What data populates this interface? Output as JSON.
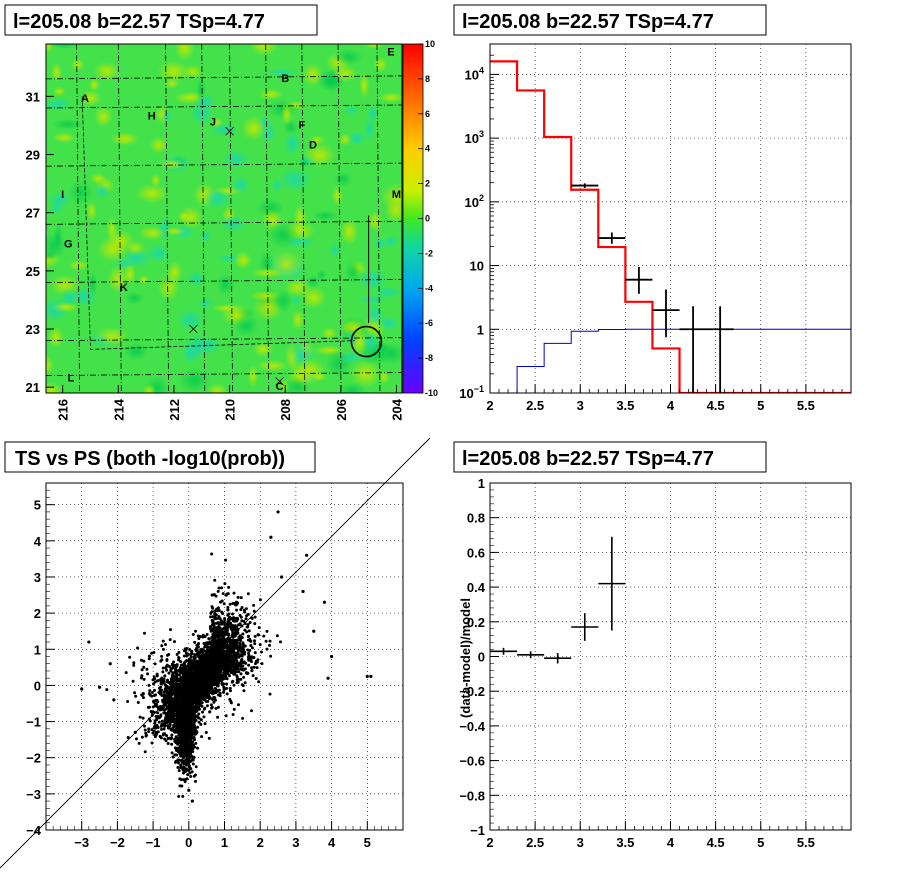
{
  "chart_data": [
    {
      "type": "heatmap",
      "title": "l=205.08 b=22.57 TSp=4.77",
      "x_ticks": [
        "216",
        "214",
        "212",
        "210",
        "208",
        "206",
        "204"
      ],
      "y_ticks": [
        "31",
        "29",
        "27",
        "25",
        "23",
        "21"
      ],
      "colorbar_ticks": [
        "10",
        "8",
        "6",
        "4",
        "2",
        "0",
        "-2",
        "-4",
        "-6",
        "-8",
        "-10"
      ],
      "colorbar_range": [
        -10,
        10
      ],
      "source_labels": [
        {
          "text": "A",
          "l": 215.2,
          "b": 30.8
        },
        {
          "text": "B",
          "l": 208.0,
          "b": 31.5
        },
        {
          "text": "C",
          "l": 208.2,
          "b": 20.9
        },
        {
          "text": "D",
          "l": 207.0,
          "b": 29.2
        },
        {
          "text": "E",
          "l": 204.2,
          "b": 32.4
        },
        {
          "text": "F",
          "l": 207.4,
          "b": 29.9
        },
        {
          "text": "G",
          "l": 215.8,
          "b": 25.8
        },
        {
          "text": "H",
          "l": 212.8,
          "b": 30.2
        },
        {
          "text": "I",
          "l": 216.0,
          "b": 27.5
        },
        {
          "text": "J",
          "l": 210.6,
          "b": 30.0
        },
        {
          "text": "K",
          "l": 213.8,
          "b": 24.3
        },
        {
          "text": "L",
          "l": 215.7,
          "b": 21.2
        },
        {
          "text": "M",
          "l": 204.0,
          "b": 27.5
        }
      ],
      "markers": [
        {
          "l": 210.0,
          "b": 29.8
        },
        {
          "l": 211.3,
          "b": 23.0
        },
        {
          "l": 208.2,
          "b": 21.2
        }
      ],
      "circle": {
        "l": 205.08,
        "b": 22.57
      },
      "xlim": [
        216.6,
        203.8
      ],
      "ylim": [
        20.8,
        32.8
      ],
      "grid": true
    },
    {
      "type": "line",
      "title": "l=205.08 b=22.57 TSp=4.77",
      "y_scale": "log",
      "xlim": [
        2,
        6
      ],
      "ylim": [
        0.1,
        30000
      ],
      "x_ticks": [
        "2",
        "2.5",
        "3",
        "3.5",
        "4",
        "4.5",
        "5",
        "5.5"
      ],
      "y_ticks": [
        "10^-1",
        "1",
        "10",
        "10^2",
        "10^3",
        "10^4"
      ],
      "series": [
        {
          "color": "#ff0000",
          "bin_edges": [
            2.0,
            2.3,
            2.6,
            2.9,
            3.2,
            3.5,
            3.8,
            4.1,
            4.4,
            6.0
          ],
          "values": [
            16000,
            5600,
            1040,
            155,
            19.5,
            2.7,
            0.5,
            0.1,
            0.1
          ]
        },
        {
          "color": "#0000cc",
          "bin_edges": [
            2.0,
            2.3,
            2.6,
            2.9,
            3.2,
            3.5,
            3.8,
            6.0
          ],
          "values": [
            0.1,
            0.26,
            0.6,
            0.93,
            0.99,
            1.0,
            1.0
          ]
        },
        {
          "color": "#000000",
          "kind": "errorbars",
          "points": [
            {
              "x": 3.05,
              "xerr": 0.15,
              "y": 180,
              "ylo": 165,
              "yhi": 195
            },
            {
              "x": 3.35,
              "xerr": 0.15,
              "y": 27,
              "ylo": 22,
              "yhi": 33
            },
            {
              "x": 3.65,
              "xerr": 0.15,
              "y": 6,
              "ylo": 3.6,
              "yhi": 9.5
            },
            {
              "x": 3.95,
              "xerr": 0.15,
              "y": 2,
              "ylo": 0.75,
              "yhi": 4.2
            },
            {
              "x": 4.25,
              "xerr": 0.15,
              "y": 1,
              "ylo": 0.1,
              "yhi": 2.3
            },
            {
              "x": 4.55,
              "xerr": 0.15,
              "y": 1,
              "ylo": 0.1,
              "yhi": 2.3
            }
          ]
        }
      ],
      "grid": true
    },
    {
      "type": "scatter",
      "title": "TS vs PS (both -log10(prob))",
      "xlim": [
        -4,
        6
      ],
      "ylim": [
        -4,
        5.6
      ],
      "x_ticks": [
        "−3",
        "−2",
        "−1",
        "0",
        "1",
        "2",
        "3",
        "4",
        "5"
      ],
      "y_ticks": [
        "−4",
        "−3",
        "−2",
        "−1",
        "0",
        "1",
        "2",
        "3",
        "4",
        "5"
      ],
      "diagonal": "y = x",
      "cluster": {
        "center": [
          0.2,
          0.1
        ],
        "n": 4500
      },
      "outliers": [
        [
          -2.8,
          1.2
        ],
        [
          -3.0,
          -0.1
        ],
        [
          -2.5,
          -0.05
        ],
        [
          3.9,
          0.2
        ],
        [
          5.0,
          0.25
        ],
        [
          5.1,
          0.25
        ],
        [
          3.8,
          2.3
        ],
        [
          3.3,
          3.6
        ],
        [
          2.5,
          4.8
        ],
        [
          2.3,
          4.1
        ],
        [
          3.5,
          1.5
        ],
        [
          4.0,
          0.8
        ],
        [
          3.2,
          2.6
        ],
        [
          2.6,
          3.0
        ],
        [
          -2.2,
          0.6
        ],
        [
          -2.1,
          -0.4
        ],
        [
          -1.5,
          -1.3
        ],
        [
          0.1,
          -3.2
        ],
        [
          0.0,
          -2.9
        ]
      ],
      "grid": true
    },
    {
      "type": "scatter",
      "title": "l=205.08 b=22.57 TSp=4.77",
      "ylabel": "(data-model)/model",
      "xlim": [
        2,
        6
      ],
      "ylim": [
        -1,
        1
      ],
      "x_ticks": [
        "2",
        "2.5",
        "3",
        "3.5",
        "4",
        "4.5",
        "5",
        "5.5"
      ],
      "y_ticks": [
        "−1",
        "−0.8",
        "−0.6",
        "−0.4",
        "−0.2",
        "0",
        "0.2",
        "0.4",
        "0.6",
        "0.8",
        "1"
      ],
      "points": [
        {
          "x": 2.15,
          "xerr": 0.15,
          "y": 0.03,
          "yerr": 0.02
        },
        {
          "x": 2.45,
          "xerr": 0.15,
          "y": 0.01,
          "yerr": 0.02
        },
        {
          "x": 2.75,
          "xerr": 0.15,
          "y": -0.01,
          "yerr": 0.03
        },
        {
          "x": 3.05,
          "xerr": 0.15,
          "y": 0.17,
          "yerr": 0.08
        },
        {
          "x": 3.35,
          "xerr": 0.15,
          "y": 0.42,
          "yerr": 0.27
        }
      ],
      "grid": true
    }
  ]
}
